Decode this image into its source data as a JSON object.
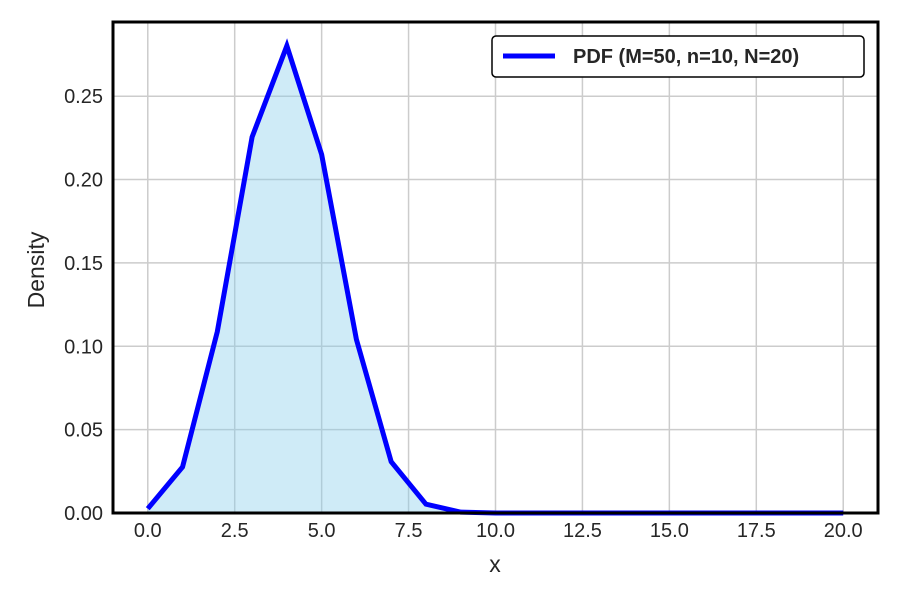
{
  "chart_data": {
    "type": "area",
    "title": "",
    "xlabel": "x",
    "ylabel": "Density",
    "xlim": [
      -1,
      21
    ],
    "ylim": [
      0,
      0.2945
    ],
    "x_ticks": [
      0,
      2.5,
      5,
      7.5,
      10,
      12.5,
      15,
      17.5,
      20
    ],
    "x_tick_labels": [
      "0.0",
      "2.5",
      "5.0",
      "7.5",
      "10.0",
      "12.5",
      "15.0",
      "17.5",
      "20.0"
    ],
    "y_ticks": [
      0,
      0.05,
      0.1,
      0.15,
      0.2,
      0.25
    ],
    "y_tick_labels": [
      "0.00",
      "0.05",
      "0.10",
      "0.15",
      "0.20",
      "0.25"
    ],
    "grid": true,
    "legend_position": "top-right",
    "series": [
      {
        "name": "PDF (M=50, n=10, N=20)",
        "color": "#0000ff",
        "fill_color": "#87ceeb",
        "x": [
          0,
          1,
          2,
          3,
          4,
          5,
          6,
          7,
          8,
          9,
          10,
          11,
          12,
          13,
          14,
          15,
          16,
          17,
          18,
          19,
          20
        ],
        "values": [
          0.0026,
          0.0276,
          0.1088,
          0.2255,
          0.2802,
          0.215,
          0.1041,
          0.0308,
          0.0053,
          0.0005,
          0.0,
          0,
          0,
          0,
          0,
          0,
          0,
          0,
          0,
          0,
          0
        ]
      }
    ]
  }
}
